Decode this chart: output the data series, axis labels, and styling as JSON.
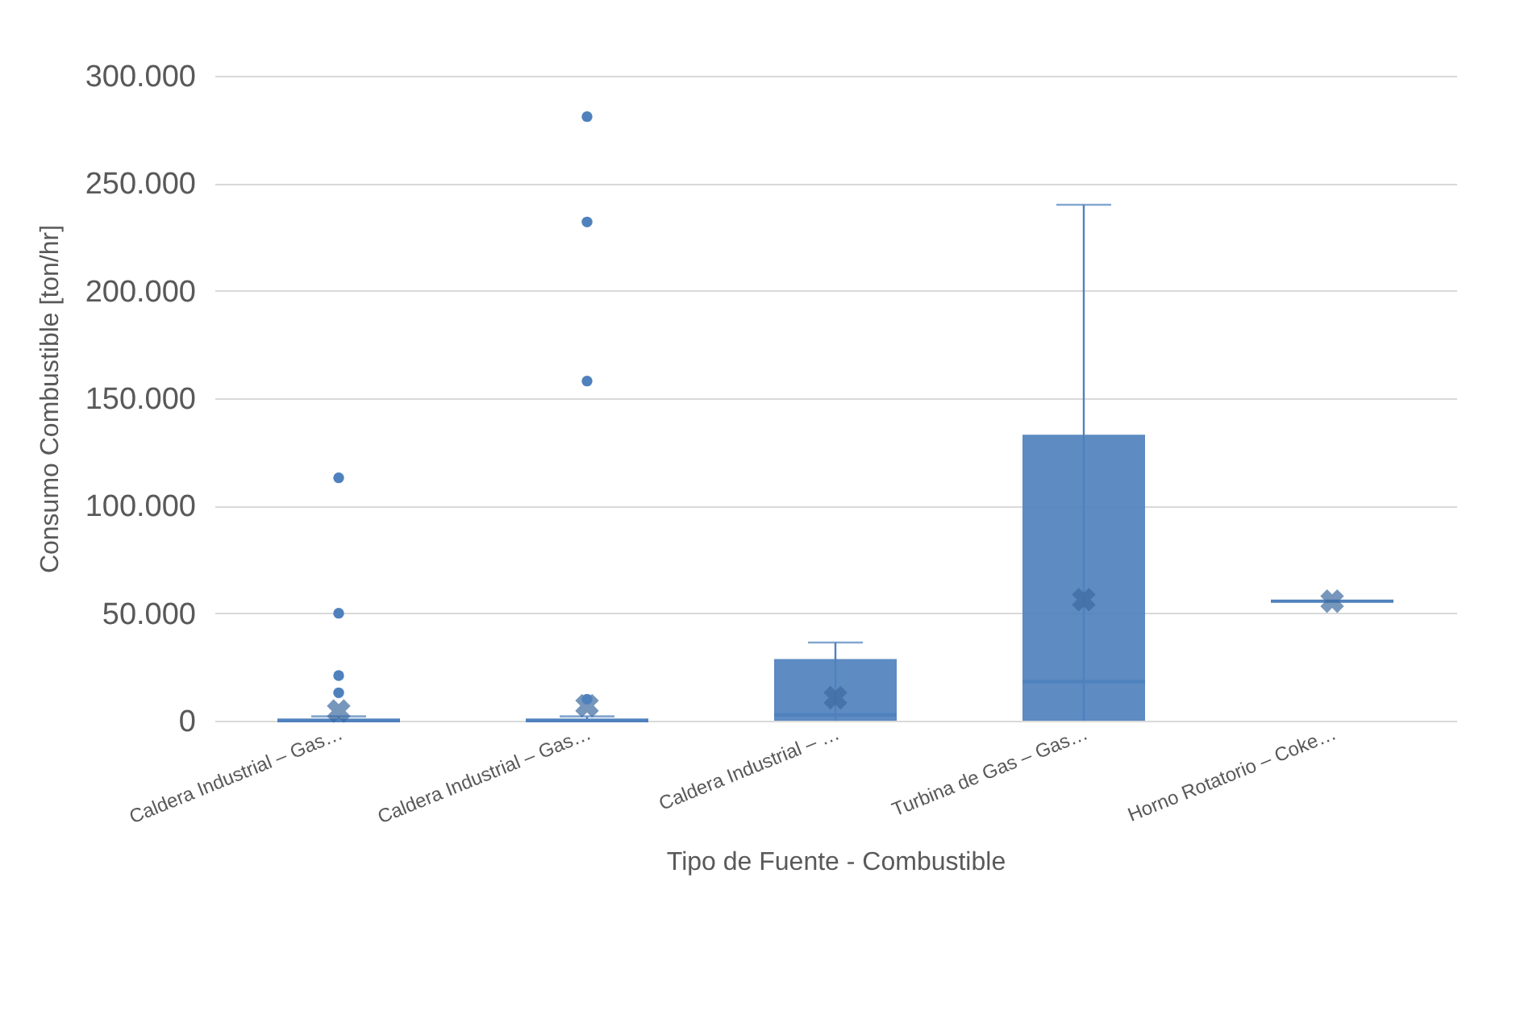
{
  "chart_data": {
    "type": "box",
    "xlabel": "Tipo de Fuente - Combustible",
    "ylabel": "Consumo Combustible [ton/hr]",
    "categories": [
      "Caldera Industrial – Gas…",
      "Caldera Industrial – Gas…",
      "Caldera Industrial – …",
      "Turbina de Gas – Gas…",
      "Horno Rotatorio – Coke…"
    ],
    "series": [
      {
        "color": "#4f81bd",
        "boxes": [
          {
            "low": 0,
            "q1": 0,
            "median": 0,
            "q3": 1000,
            "high": 2000,
            "mean": 4500,
            "outliers": [
              113000,
              50000,
              21000,
              13000
            ]
          },
          {
            "low": 0,
            "q1": 0,
            "median": 0,
            "q3": 1000,
            "high": 2000,
            "mean": 7000,
            "outliers": [
              281000,
              232000,
              158000,
              10000
            ]
          },
          {
            "low": 0,
            "q1": 0,
            "median": 2700,
            "q3": 28700,
            "high": 36400,
            "mean": 10700
          },
          {
            "low": 0,
            "q1": 0,
            "median": 18200,
            "q3": 133000,
            "high": 240000,
            "mean": 56300
          },
          {
            "low": 55600,
            "q1": 55600,
            "median": 55600,
            "q3": 55600,
            "high": 55600,
            "mean": 55600
          }
        ]
      }
    ],
    "ylim": [
      0,
      300000
    ],
    "yticks": [
      {
        "value": 0,
        "label": "0"
      },
      {
        "value": 50000,
        "label": "50.000"
      },
      {
        "value": 100000,
        "label": "100.000"
      },
      {
        "value": 150000,
        "label": "150.000"
      },
      {
        "value": 200000,
        "label": "200.000"
      },
      {
        "value": 250000,
        "label": "250.000"
      },
      {
        "value": 300000,
        "label": "300.000"
      }
    ],
    "grid": "y",
    "marker": "circle"
  }
}
